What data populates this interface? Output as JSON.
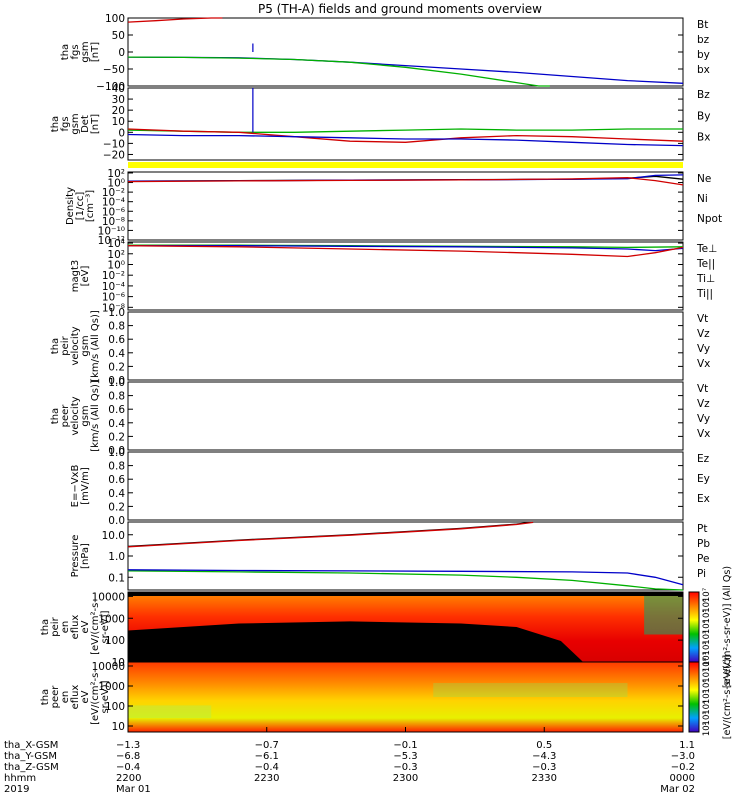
{
  "title": "P5 (TH-A) fields and ground moments overview",
  "colors": {
    "black": "#000000",
    "red": "#d00000",
    "green": "#00b000",
    "blue": "#0000c8",
    "yellow": "#ffff00"
  },
  "chart_data": [
    {
      "id": "p1",
      "type": "line",
      "ylabel": [
        "tha",
        "fgs",
        "gsm",
        "[nT]"
      ],
      "ylim": [
        -100,
        100
      ],
      "ticks": [
        "100",
        "50",
        "0",
        "−50",
        "−100"
      ],
      "tick_values": [
        100,
        50,
        0,
        -50,
        -100
      ],
      "log": false,
      "legend": [
        {
          "name": "Bt",
          "color": "#000000"
        },
        {
          "name": "bz",
          "color": "#d00000"
        },
        {
          "name": "by",
          "color": "#00b000"
        },
        {
          "name": "bx",
          "color": "#0000c8"
        }
      ],
      "series": [
        {
          "color": "#0000c8",
          "x": [
            0,
            0.1,
            0.2,
            0.3,
            0.4,
            0.5,
            0.6,
            0.7,
            0.8,
            0.9,
            1.0
          ],
          "y": [
            -15,
            -16,
            -17,
            -22,
            -30,
            -40,
            -50,
            -60,
            -72,
            -84,
            -92
          ]
        },
        {
          "color": "#00b000",
          "x": [
            0,
            0.1,
            0.2,
            0.3,
            0.4,
            0.5,
            0.6,
            0.7,
            0.74,
            0.76
          ],
          "y": [
            -15,
            -16,
            -18,
            -22,
            -30,
            -45,
            -65,
            -90,
            -100,
            -105
          ]
        },
        {
          "color": "#d00000",
          "x": [
            0,
            0.05,
            0.1,
            0.15,
            0.17
          ],
          "y": [
            88,
            92,
            97,
            101,
            105
          ]
        }
      ],
      "spikes": [
        {
          "x": 0.225,
          "y": 25,
          "color": "#0000c8"
        }
      ]
    },
    {
      "id": "p2",
      "type": "line",
      "ylabel": [
        "tha",
        "fgs",
        "gsm",
        "Det",
        "[nT]"
      ],
      "ylim": [
        -25,
        40
      ],
      "ticks": [
        "40",
        "30",
        "20",
        "10",
        "0",
        "−10",
        "−20"
      ],
      "tick_values": [
        40,
        30,
        20,
        10,
        0,
        -10,
        -20
      ],
      "log": false,
      "legend": [
        {
          "name": "Bz",
          "color": "#d00000"
        },
        {
          "name": "By",
          "color": "#00b000"
        },
        {
          "name": "Bx",
          "color": "#0000c8"
        }
      ],
      "series": [
        {
          "color": "#00b000",
          "x": [
            0,
            0.1,
            0.2,
            0.3,
            0.4,
            0.5,
            0.6,
            0.7,
            0.8,
            0.9,
            1.0
          ],
          "y": [
            2,
            1,
            0,
            0,
            1,
            2,
            3,
            2,
            2,
            3,
            3
          ]
        },
        {
          "color": "#d00000",
          "x": [
            0,
            0.1,
            0.2,
            0.3,
            0.4,
            0.5,
            0.6,
            0.7,
            0.8,
            0.9,
            1.0
          ],
          "y": [
            3,
            1,
            0,
            -4,
            -8,
            -9,
            -5,
            -3,
            -4,
            -6,
            -8
          ]
        },
        {
          "color": "#0000c8",
          "x": [
            0,
            0.1,
            0.2,
            0.3,
            0.4,
            0.5,
            0.6,
            0.7,
            0.8,
            0.9,
            1.0
          ],
          "y": [
            -2,
            -3,
            -3,
            -4,
            -5,
            -6,
            -6,
            -7,
            -9,
            -11,
            -12
          ]
        }
      ],
      "spikes": [
        {
          "x": 0.225,
          "y": 40,
          "color": "#0000c8"
        }
      ]
    },
    {
      "id": "p3",
      "type": "line",
      "ylabel": [
        "Density",
        "[1/cc]",
        "[cm⁻³]"
      ],
      "ylim": [
        -12,
        2.2
      ],
      "ticks": [
        "10²",
        "10⁰",
        "10⁻²",
        "10⁻⁴",
        "10⁻⁶",
        "10⁻⁸",
        "10⁻¹⁰",
        "10⁻¹²"
      ],
      "tick_values": [
        2,
        0,
        -2,
        -4,
        -6,
        -8,
        -10,
        -12
      ],
      "log": true,
      "legend": [
        {
          "name": "Ne",
          "color": "#d00000"
        },
        {
          "name": "Ni",
          "color": "#000000"
        },
        {
          "name": "Npot",
          "color": "#0000c8"
        }
      ],
      "series": [
        {
          "color": "#000000",
          "x": [
            0,
            0.2,
            0.4,
            0.6,
            0.8,
            0.9,
            0.95,
            1.0
          ],
          "y": [
            0.3,
            0.4,
            0.5,
            0.6,
            0.7,
            0.9,
            1.3,
            0.7
          ]
        },
        {
          "color": "#0000c8",
          "x": [
            0,
            0.2,
            0.4,
            0.6,
            0.8,
            0.9,
            0.95,
            1.0
          ],
          "y": [
            0.3,
            0.35,
            0.5,
            0.55,
            0.7,
            0.8,
            1.5,
            1.6
          ]
        },
        {
          "color": "#d00000",
          "x": [
            0,
            0.2,
            0.4,
            0.6,
            0.8,
            0.9,
            0.95,
            1.0
          ],
          "y": [
            0.2,
            0.35,
            0.45,
            0.55,
            0.75,
            1.0,
            0.4,
            -0.5
          ]
        }
      ]
    },
    {
      "id": "p4",
      "type": "line",
      "ylabel": [
        "magt3",
        "[eV]"
      ],
      "ylim": [
        -8.5,
        4.2
      ],
      "ticks": [
        "10⁴",
        "10²",
        "10⁰",
        "10⁻²",
        "10⁻⁴",
        "10⁻⁶",
        "10⁻⁸"
      ],
      "tick_values": [
        4,
        2,
        0,
        -2,
        -4,
        -6,
        -8
      ],
      "log": true,
      "legend": [
        {
          "name": "Te⊥",
          "color": "#d00000"
        },
        {
          "name": "Te||",
          "color": "#000000"
        },
        {
          "name": "Ti⊥",
          "color": "#0000c8"
        },
        {
          "name": "Ti||",
          "color": "#00b000"
        }
      ],
      "series": [
        {
          "color": "#00b000",
          "x": [
            0,
            0.2,
            0.4,
            0.6,
            0.8,
            0.9,
            1.0
          ],
          "y": [
            3.6,
            3.6,
            3.5,
            3.4,
            3.3,
            3.2,
            3.3
          ]
        },
        {
          "color": "#0000c8",
          "x": [
            0,
            0.2,
            0.4,
            0.6,
            0.8,
            0.9,
            0.95,
            1.0
          ],
          "y": [
            3.5,
            3.5,
            3.4,
            3.3,
            3.1,
            2.9,
            2.6,
            3.0
          ]
        },
        {
          "color": "#d00000",
          "x": [
            0,
            0.2,
            0.4,
            0.6,
            0.8,
            0.9,
            0.95,
            1.0
          ],
          "y": [
            3.5,
            3.3,
            2.9,
            2.5,
            1.9,
            1.5,
            2.2,
            3.2
          ]
        }
      ]
    },
    {
      "id": "p5",
      "type": "line",
      "ylabel": [
        "tha",
        "peir",
        "velocity",
        "gsm",
        "[km/s (All Qs)]"
      ],
      "ylim": [
        0,
        1
      ],
      "ticks": [
        "1.0",
        "0.8",
        "0.6",
        "0.4",
        "0.2",
        "0.0"
      ],
      "tick_values": [
        1.0,
        0.8,
        0.6,
        0.4,
        0.2,
        0.0
      ],
      "log": false,
      "legend": [
        {
          "name": "Vt",
          "color": "#000000"
        },
        {
          "name": "Vz",
          "color": "#d00000"
        },
        {
          "name": "Vy",
          "color": "#00b000"
        },
        {
          "name": "Vx",
          "color": "#0000c8"
        }
      ],
      "series": []
    },
    {
      "id": "p6",
      "type": "line",
      "ylabel": [
        "tha",
        "peer",
        "velocity",
        "gsm",
        "[km/s (All Qs)]"
      ],
      "ylim": [
        0,
        1
      ],
      "ticks": [
        "1.0",
        "0.8",
        "0.6",
        "0.4",
        "0.2",
        "0.0"
      ],
      "tick_values": [
        1.0,
        0.8,
        0.6,
        0.4,
        0.2,
        0.0
      ],
      "log": false,
      "legend": [
        {
          "name": "Vt",
          "color": "#000000"
        },
        {
          "name": "Vz",
          "color": "#d00000"
        },
        {
          "name": "Vy",
          "color": "#00b000"
        },
        {
          "name": "Vx",
          "color": "#0000c8"
        }
      ],
      "series": []
    },
    {
      "id": "p7",
      "type": "line",
      "ylabel": [
        "E=−VxB",
        "[mV/m]"
      ],
      "ylim": [
        0,
        1
      ],
      "ticks": [
        "1.0",
        "0.8",
        "0.6",
        "0.4",
        "0.2",
        "0.0"
      ],
      "tick_values": [
        1.0,
        0.8,
        0.6,
        0.4,
        0.2,
        0.0
      ],
      "log": false,
      "legend": [
        {
          "name": "Ez",
          "color": "#d00000"
        },
        {
          "name": "Ey",
          "color": "#00b000"
        },
        {
          "name": "Ex",
          "color": "#0000c8"
        }
      ],
      "series": []
    },
    {
      "id": "p8",
      "type": "line",
      "ylabel": [
        "Pressure",
        "[nPa]"
      ],
      "ylim": [
        -1.6,
        1.6
      ],
      "ticks": [
        "10.0",
        "1.0",
        "0.1"
      ],
      "tick_values": [
        1,
        0,
        -1
      ],
      "log": true,
      "legend": [
        {
          "name": "Pt",
          "color": "#000000"
        },
        {
          "name": "Pb",
          "color": "#d00000"
        },
        {
          "name": "Pe",
          "color": "#00b000"
        },
        {
          "name": "Pi",
          "color": "#0000c8"
        }
      ],
      "series": [
        {
          "color": "#000000",
          "x": [
            0,
            0.2,
            0.4,
            0.6,
            0.7,
            0.73
          ],
          "y": [
            0.45,
            0.75,
            1.0,
            1.3,
            1.5,
            1.6
          ]
        },
        {
          "color": "#d00000",
          "x": [
            0,
            0.2,
            0.4,
            0.6,
            0.7,
            0.73
          ],
          "y": [
            0.43,
            0.73,
            0.98,
            1.28,
            1.48,
            1.58
          ]
        },
        {
          "color": "#00b000",
          "x": [
            0,
            0.2,
            0.4,
            0.6,
            0.7,
            0.8,
            0.9,
            0.95,
            1.0
          ],
          "y": [
            -0.7,
            -0.75,
            -0.8,
            -0.9,
            -1.0,
            -1.15,
            -1.4,
            -1.55,
            -1.6
          ]
        },
        {
          "color": "#0000c8",
          "x": [
            0,
            0.2,
            0.4,
            0.6,
            0.8,
            0.9,
            0.95,
            1.0
          ],
          "y": [
            -0.65,
            -0.68,
            -0.7,
            -0.72,
            -0.75,
            -0.8,
            -1.0,
            -1.35
          ]
        }
      ]
    },
    {
      "id": "p9",
      "type": "heatmap",
      "ylabel": [
        "tha",
        "peir",
        "en",
        "eflux",
        "eV",
        "[eV/(cm²-s-",
        "sr-eV)]"
      ],
      "ylim": [
        1,
        4.2
      ],
      "ticks": [
        "10000",
        "1000",
        "100",
        "10"
      ],
      "tick_values": [
        4,
        3,
        2,
        1
      ],
      "log": true,
      "colorbar": {
        "label": "[eV/(cm²-s-sr-eV)] (All Qs)",
        "ticks": [
          "10⁷",
          "10⁶",
          "10⁵",
          "10⁴",
          "10³",
          "10²",
          "10¹"
        ]
      }
    },
    {
      "id": "p10",
      "type": "heatmap",
      "ylabel": [
        "tha",
        "peer",
        "en",
        "eflux",
        "eV",
        "[eV/(cm²-s-",
        "sr-eV)]"
      ],
      "ylim": [
        0.7,
        4.2
      ],
      "ticks": [
        "10000",
        "1000",
        "100",
        "10"
      ],
      "tick_values": [
        4,
        3,
        2,
        1
      ],
      "log": true,
      "colorbar": {
        "label": "[eV/(cm²-s-sr-eV)]",
        "ticks": [
          "10⁸",
          "10⁷",
          "10⁶",
          "10⁵",
          "10⁴",
          "10³",
          "10²"
        ]
      }
    }
  ],
  "xaxis": {
    "rows": [
      {
        "label": "tha_X-GSM",
        "values": [
          "−1.3",
          "−0.7",
          "−0.1",
          "0.5",
          "1.1"
        ]
      },
      {
        "label": "tha_Y-GSM",
        "values": [
          "−6.8",
          "−6.1",
          "−5.3",
          "−4.3",
          "−3.0"
        ]
      },
      {
        "label": "tha_Z-GSM",
        "values": [
          "−0.4",
          "−0.4",
          "−0.3",
          "−0.3",
          "−0.2"
        ]
      },
      {
        "label": "hhmm",
        "values": [
          "2200",
          "2230",
          "2300",
          "2330",
          "0000"
        ]
      },
      {
        "label": "2019",
        "values": [
          "Mar 01",
          "",
          "",
          "",
          "Mar 02"
        ]
      }
    ]
  }
}
